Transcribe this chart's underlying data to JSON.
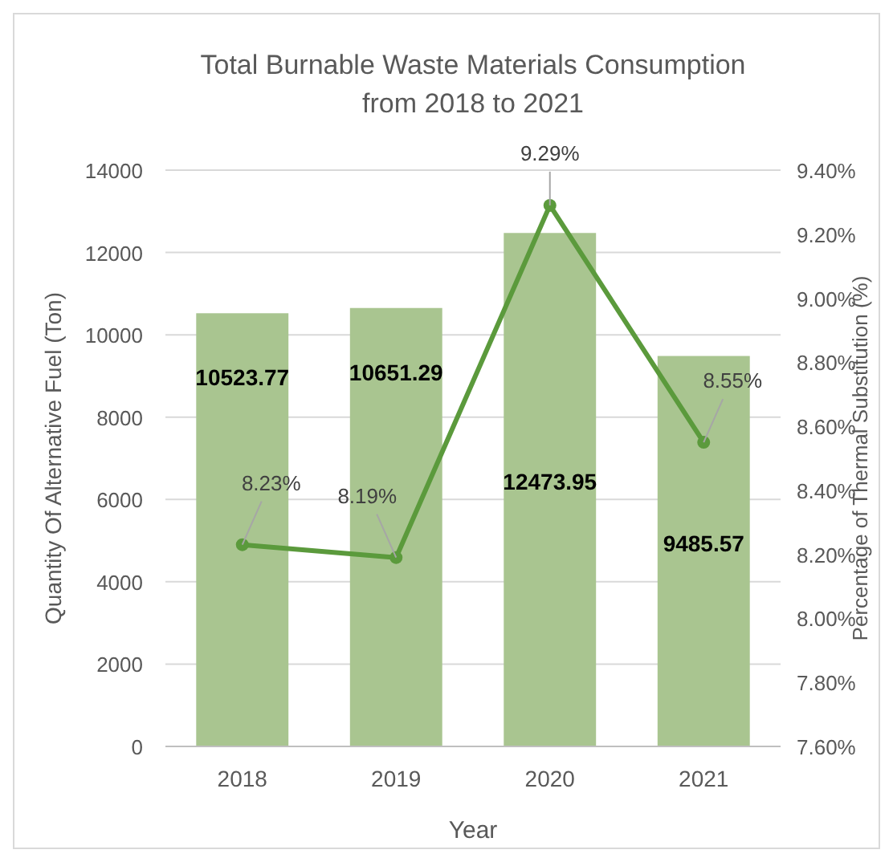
{
  "chart_data": {
    "type": "bar",
    "title": "Total Burnable Waste Materials Consumption from 2018 to 2021",
    "xlabel": "Year",
    "ylabel": "Quantity Of Alternative Fuel (Ton)",
    "y2label": "Percentage of Thermal Substitution (%)",
    "categories": [
      "2018",
      "2019",
      "2020",
      "2021"
    ],
    "series": [
      {
        "color": "#a9c590",
        "values": [
          10523.77,
          10651.29,
          12473.95,
          9485.57
        ],
        "value_labels": [
          "10523.77",
          "10651.29",
          "12473.95",
          "9485.57"
        ]
      },
      {
        "type": "line",
        "axis": "y2",
        "color": "#5b9a3c",
        "marker": "circle",
        "line_style": "solid",
        "values": [
          8.23,
          8.19,
          9.29,
          8.55
        ],
        "value_labels": [
          "8.23%",
          "8.19%",
          "9.29%",
          "8.55%"
        ]
      }
    ],
    "ylim": [
      0,
      14000
    ],
    "yticks": [
      0,
      2000,
      4000,
      6000,
      8000,
      10000,
      12000,
      14000
    ],
    "y2lim": [
      7.6,
      9.4
    ],
    "y2ticks": [
      {
        "value": 7.6,
        "label": "7.60%"
      },
      {
        "value": 7.8,
        "label": "7.80%"
      },
      {
        "value": 8.0,
        "label": "8.00%"
      },
      {
        "value": 8.2,
        "label": "8.20%"
      },
      {
        "value": 8.4,
        "label": "8.40%"
      },
      {
        "value": 8.6,
        "label": "8.60%"
      },
      {
        "value": 8.8,
        "label": "8.80%"
      },
      {
        "value": 9.0,
        "label": "9.00%"
      },
      {
        "value": 9.2,
        "label": "9.20%"
      },
      {
        "value": 9.4,
        "label": "9.40%"
      }
    ],
    "grid": "y"
  }
}
